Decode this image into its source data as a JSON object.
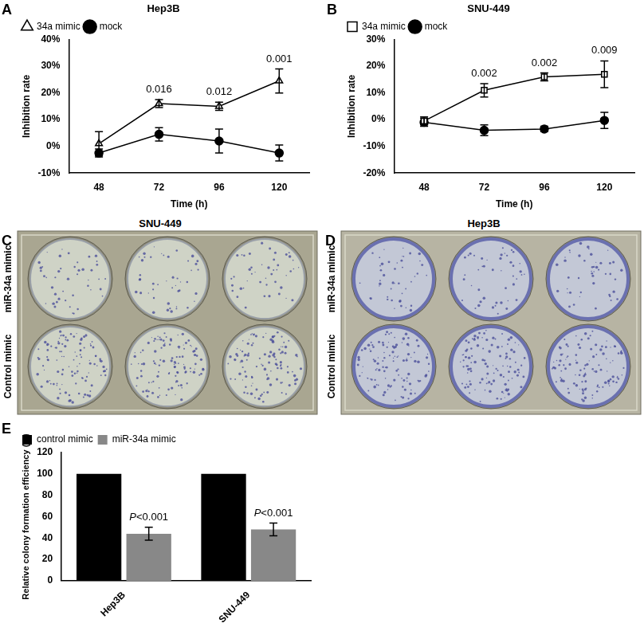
{
  "chart_data": [
    {
      "panel": "A",
      "type": "line",
      "title": "Hep3B",
      "x_label": "Time (h)",
      "y_label": "Inhibition rate",
      "categories": [
        "48",
        "72",
        "96",
        "120"
      ],
      "series": [
        {
          "name": "34a mimic",
          "color": "#000000",
          "marker": "triangle-open",
          "values": [
            1,
            16,
            15,
            24.5
          ],
          "errors": [
            4.5,
            1.5,
            1.5,
            4.5
          ]
        },
        {
          "name": "mock",
          "color": "#000000",
          "marker": "circle",
          "values": [
            -2.5,
            4.5,
            2,
            -2.5
          ],
          "errors": [
            1.5,
            2.5,
            4.5,
            3
          ]
        }
      ],
      "ylim": [
        -10,
        40
      ],
      "yticks": [
        {
          "value": -10,
          "label": "-10%"
        },
        {
          "value": 0,
          "label": "0%"
        },
        {
          "value": 10,
          "label": "10%"
        },
        {
          "value": 20,
          "label": "20%"
        },
        {
          "value": 30,
          "label": "30%"
        },
        {
          "value": 40,
          "label": "40%"
        }
      ],
      "grid": false,
      "legend": "upper left",
      "annotations": [
        {
          "category": "72",
          "text": "0.016"
        },
        {
          "category": "96",
          "text": "0.012"
        },
        {
          "category": "120",
          "text": "0.001"
        }
      ]
    },
    {
      "panel": "B",
      "type": "line",
      "title": "SNU-449",
      "x_label": "Time (h)",
      "y_label": "Inhibition rate",
      "categories": [
        "48",
        "72",
        "96",
        "120"
      ],
      "series": [
        {
          "name": "34a mimic",
          "color": "#000000",
          "marker": "square-open",
          "values": [
            -0.5,
            11,
            16,
            17
          ],
          "errors": [
            1.5,
            2.5,
            1.5,
            5
          ]
        },
        {
          "name": "mock",
          "color": "#000000",
          "marker": "circle",
          "values": [
            -1,
            -4,
            -3.5,
            -0.3
          ],
          "errors": [
            1.5,
            2,
            1,
            3
          ]
        }
      ],
      "ylim": [
        -20,
        30
      ],
      "yticks": [
        {
          "value": -20,
          "label": "-20%"
        },
        {
          "value": -10,
          "label": "-10%"
        },
        {
          "value": 0,
          "label": "0%"
        },
        {
          "value": 10,
          "label": "10%"
        },
        {
          "value": 20,
          "label": "20%"
        },
        {
          "value": 30,
          "label": "30%"
        }
      ],
      "grid": false,
      "legend": "upper left",
      "annotations": [
        {
          "category": "72",
          "text": "0.002"
        },
        {
          "category": "96",
          "text": "0.002"
        },
        {
          "category": "120",
          "text": "0.009"
        }
      ]
    },
    {
      "panel": "E",
      "type": "bar",
      "y_label": "Relative colony formation efficiency (%)",
      "categories": [
        "Hep3B",
        "SNU-449"
      ],
      "series": [
        {
          "name": "control mimic",
          "color": "#000000",
          "values": [
            100,
            100
          ]
        },
        {
          "name": "miR-34a mimic",
          "color": "#888888",
          "values": [
            44,
            48
          ],
          "errors": [
            6,
            6
          ]
        }
      ],
      "ylim": [
        0,
        120
      ],
      "yticks": [
        0,
        20,
        40,
        60,
        80,
        100,
        120
      ],
      "grid": false,
      "legend": "upper left",
      "annotations": [
        {
          "category": "Hep3B",
          "series": "miR-34a mimic",
          "text": "P<0.001"
        },
        {
          "category": "SNU-449",
          "series": "miR-34a mimic",
          "text": "P<0.001"
        }
      ]
    }
  ],
  "photos": [
    {
      "panel": "C",
      "title": "SNU-449",
      "row_labels": [
        "miR-34a mimic",
        "Control mimic"
      ]
    },
    {
      "panel": "D",
      "title": "Hep3B",
      "row_labels": [
        "miR-34a mimic",
        "Control mimic"
      ]
    }
  ]
}
